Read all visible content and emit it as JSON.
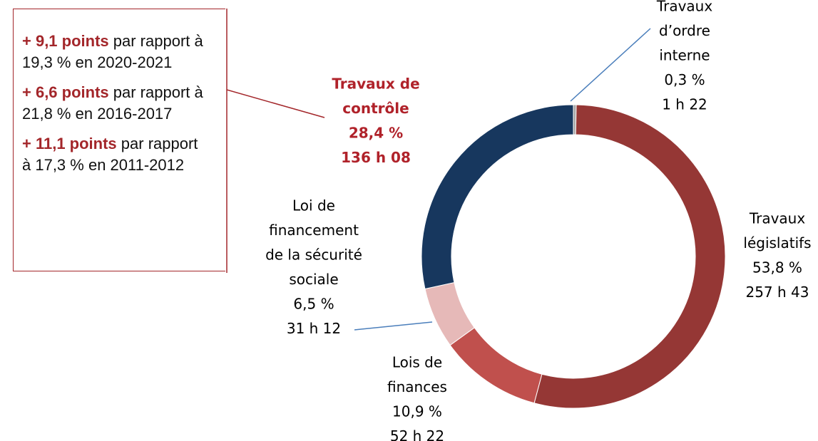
{
  "chart_data": {
    "type": "donut",
    "categories": [
      [
        "Travaux",
        "d’ordre",
        "interne"
      ],
      [
        "Travaux",
        "législatifs"
      ],
      [
        "Lois de",
        "finances"
      ],
      [
        "Loi de",
        "financement",
        "de la sécurité",
        "sociale"
      ],
      [
        "Travaux de",
        "contrôle"
      ]
    ],
    "values": [
      0.3,
      53.8,
      10.9,
      6.5,
      28.4
    ],
    "value_labels": [
      "0,3 %",
      "53,8 %",
      "10,9 %",
      "6,5 %",
      "28,4 %"
    ],
    "durations": [
      "1 h 22",
      "257 h 43",
      "52 h 22",
      "31 h 12",
      "136 h 08"
    ],
    "colors": [
      "#a5a5a5",
      "#953735",
      "#c0504d",
      "#e6b9b8",
      "#17375e"
    ],
    "annotations": [
      {
        "bold": "+ 9,1 points",
        "text": " par rapport à 19,3 % en 2020-2021"
      },
      {
        "bold": "+ 6,6 points",
        "text": " par rapport à 21,8 % en 2016-2017"
      },
      {
        "bold": "+ 11,1 points",
        "text": " par rapport à 17,3 % en 2011-2012"
      }
    ]
  }
}
